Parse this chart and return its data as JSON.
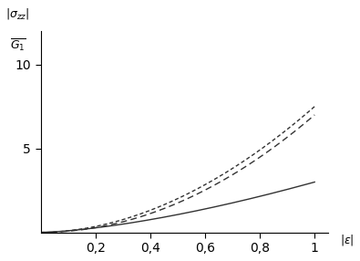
{
  "title": "",
  "ylabel": "$|\\sigma_{zz}|$\n$G_1$",
  "xlabel": "$|\\varepsilon|$",
  "xlim": [
    0,
    1.05
  ],
  "ylim": [
    0,
    12
  ],
  "yticks": [
    5,
    10
  ],
  "xticks": [
    0.2,
    0.4,
    0.6,
    0.8,
    1
  ],
  "xtick_labels": [
    "0,2",
    "0,4",
    "0,6",
    "0,8",
    "1"
  ],
  "background_color": "#ffffff",
  "line_color": "#333333",
  "curve1_style": "solid",
  "curve2_style": "dashed",
  "curve3_style": "dashed",
  "n_points": 300
}
